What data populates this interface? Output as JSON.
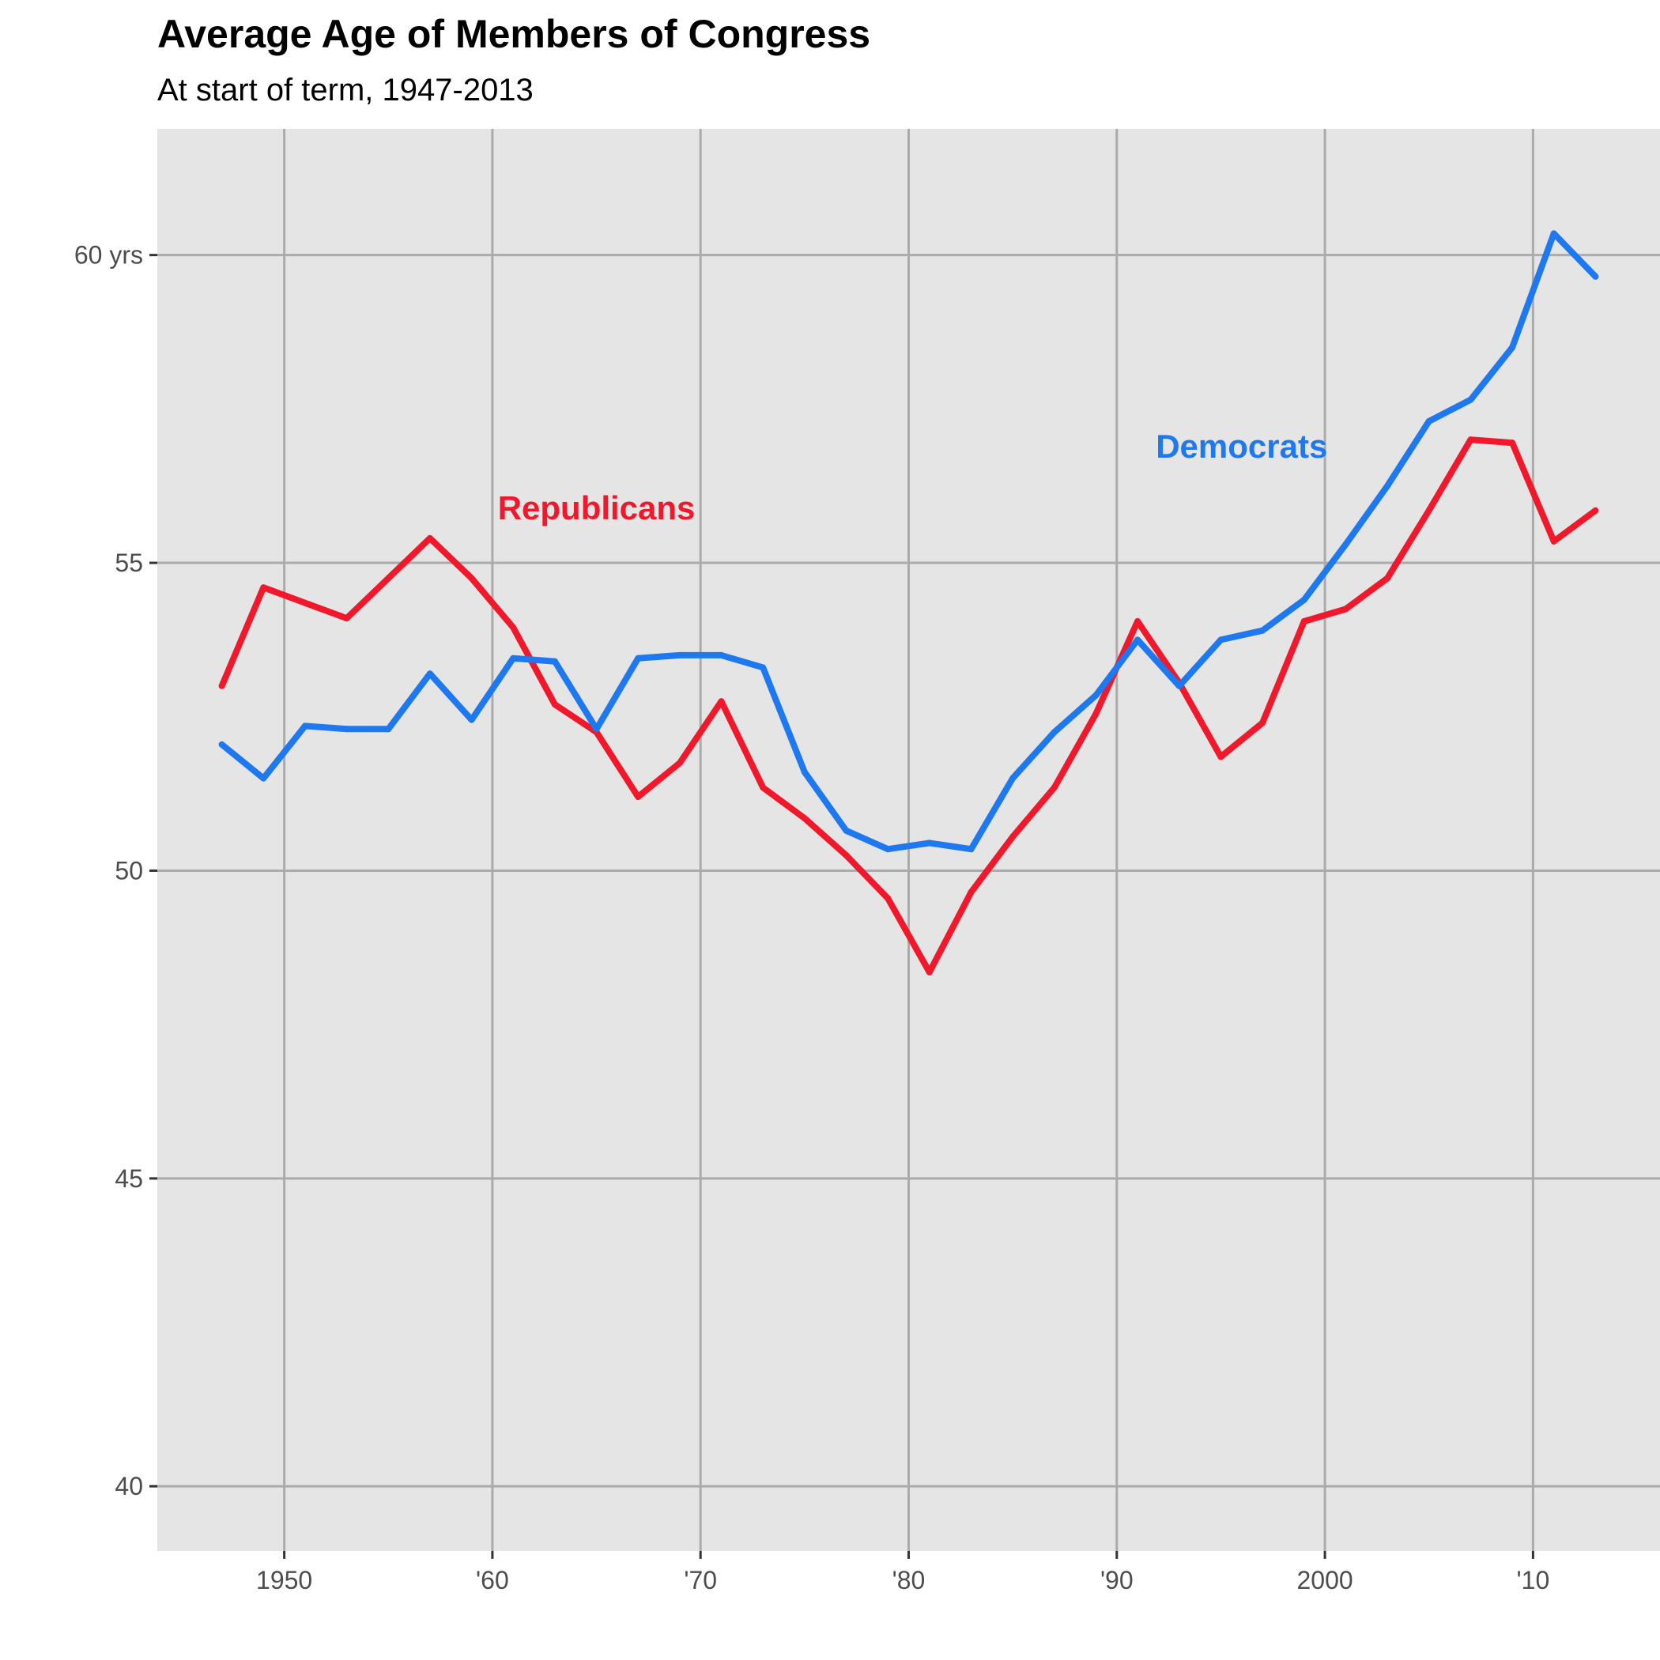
{
  "chart_data": {
    "type": "line",
    "title": "Average Age of Members of Congress",
    "subtitle": "At start of term, 1947-2013",
    "xlabel": "",
    "ylabel": "",
    "xlim": [
      1943.9,
      2016.1
    ],
    "ylim": [
      38.95,
      62.05
    ],
    "grid": true,
    "x_ticks": [
      {
        "value": 1950,
        "label": "1950"
      },
      {
        "value": 1960,
        "label": "'60"
      },
      {
        "value": 1970,
        "label": "'70"
      },
      {
        "value": 1980,
        "label": "'80"
      },
      {
        "value": 1990,
        "label": "'90"
      },
      {
        "value": 2000,
        "label": "2000"
      },
      {
        "value": 2010,
        "label": "'10"
      }
    ],
    "y_ticks": [
      {
        "value": 40,
        "label": "40"
      },
      {
        "value": 45,
        "label": "45"
      },
      {
        "value": 50,
        "label": "50"
      },
      {
        "value": 55,
        "label": "55"
      },
      {
        "value": 60,
        "label": "60 yrs"
      }
    ],
    "x": [
      1947,
      1949,
      1951,
      1953,
      1955,
      1957,
      1959,
      1961,
      1963,
      1965,
      1967,
      1969,
      1971,
      1973,
      1975,
      1977,
      1979,
      1981,
      1983,
      1985,
      1987,
      1989,
      1991,
      1993,
      1995,
      1997,
      1999,
      2001,
      2003,
      2005,
      2007,
      2009,
      2011,
      2013
    ],
    "series": [
      {
        "name": "Republicans",
        "color": "#f2182c",
        "label_year": 1965,
        "label_age": 55.9,
        "values": [
          53.0,
          54.6,
          54.35,
          54.1,
          54.75,
          55.4,
          54.75,
          53.95,
          52.7,
          52.25,
          51.2,
          51.75,
          52.75,
          51.35,
          50.85,
          50.25,
          49.55,
          48.35,
          49.65,
          50.55,
          51.35,
          52.55,
          54.05,
          53.05,
          51.85,
          52.4,
          54.05,
          54.25,
          54.75,
          55.85,
          57.0,
          56.95,
          55.35,
          55.85
        ]
      },
      {
        "name": "Democrats",
        "color": "#1e78f0",
        "label_year": 1996,
        "label_age": 56.9,
        "values": [
          52.05,
          51.5,
          52.35,
          52.3,
          52.3,
          53.2,
          52.45,
          53.45,
          53.4,
          52.3,
          53.45,
          53.5,
          53.5,
          53.3,
          51.6,
          50.65,
          50.35,
          50.45,
          50.35,
          51.5,
          52.25,
          52.85,
          53.75,
          53.0,
          53.75,
          53.9,
          54.4,
          55.3,
          56.25,
          57.3,
          57.65,
          58.5,
          60.35,
          59.65
        ]
      }
    ]
  }
}
